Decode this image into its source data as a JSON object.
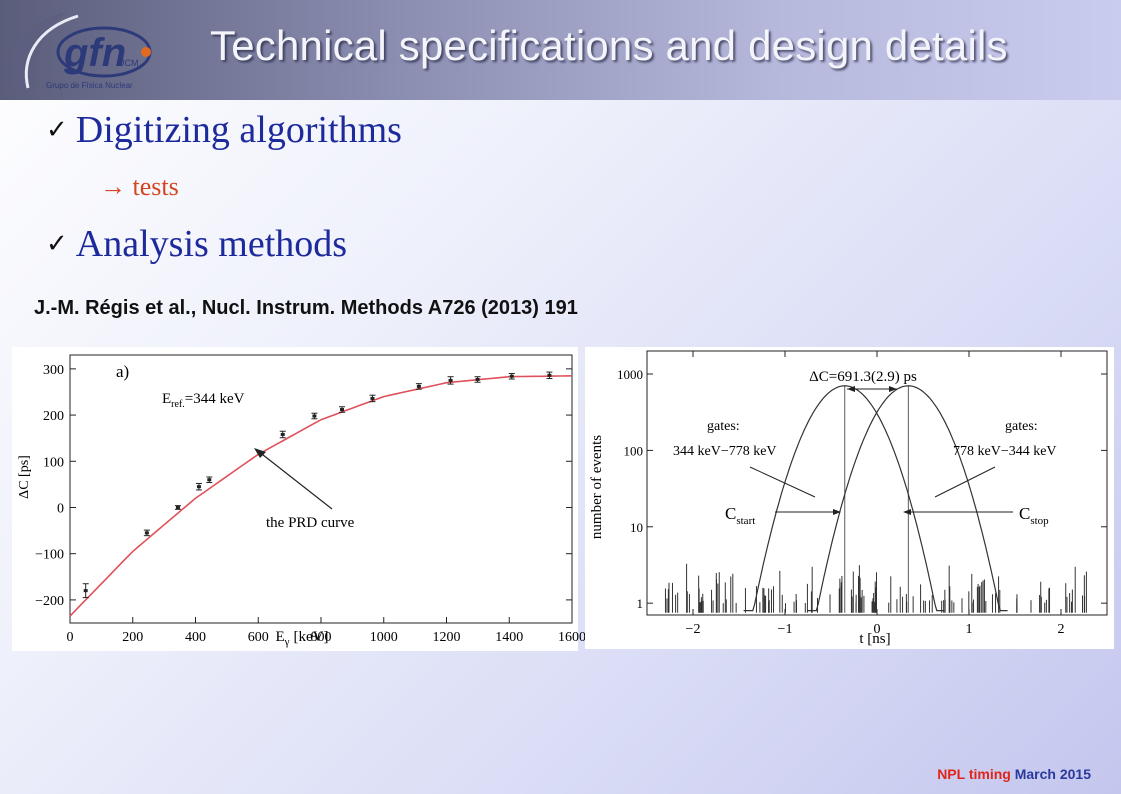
{
  "slide": {
    "title": "Technical specifications and design details",
    "logo_text": "gfn",
    "logo_sub": "UCM",
    "logo_caption": "Grupo de Física Nuclear",
    "bullets": [
      {
        "check": "✓",
        "text": "Digitizing algorithms"
      },
      {
        "check": "✓",
        "text": "Analysis methods"
      }
    ],
    "sub_bullet": "→ tests",
    "reference": "J.-M. Régis et al., Nucl. Instrum. Methods A726 (2013) 191",
    "footer": {
      "part1": "NPL timing",
      "part2": " March 2015"
    }
  },
  "chart_data": [
    {
      "type": "scatter",
      "panel_label": "a)",
      "annotation_eref": "E",
      "annotation_eref_sub": "ref.",
      "annotation_eref_value": "=344 keV",
      "curve_label": "the PRD curve",
      "xlabel": "E",
      "xlabel_sub": "γ",
      "xlabel_unit": "[keV]",
      "ylabel": "ΔC [ps]",
      "xlim": [
        0,
        1600
      ],
      "ylim": [
        -250,
        330
      ],
      "xticks": [
        "0",
        "200",
        "400",
        "600",
        "800",
        "1000",
        "1200",
        "1400",
        "1600"
      ],
      "yticks": [
        "−200",
        "−100",
        "0",
        "100",
        "200",
        "300"
      ],
      "x": [
        50,
        245,
        344,
        411,
        444,
        678,
        779,
        867,
        964,
        1112,
        1213,
        1299,
        1408,
        1528
      ],
      "y": [
        -180,
        -55,
        0,
        45,
        60,
        158,
        198,
        212,
        236,
        262,
        275,
        277,
        284,
        286
      ],
      "err": [
        15,
        6,
        4,
        7,
        6,
        7,
        6,
        6,
        7,
        6,
        8,
        6,
        6,
        7
      ],
      "curve": {
        "x": [
          0,
          200,
          400,
          600,
          800,
          1000,
          1200,
          1400,
          1600
        ],
        "y": [
          -235,
          -95,
          20,
          115,
          190,
          240,
          270,
          283,
          285
        ]
      }
    },
    {
      "type": "line",
      "title": "ΔC=691.3(2.9) ps",
      "xlabel": "t [ns]",
      "ylabel": "number of events",
      "yscale": "log",
      "xlim": [
        -2.5,
        2.5
      ],
      "ylim": [
        0.7,
        2000
      ],
      "xticks": [
        "−2",
        "−1",
        "0",
        "1",
        "2"
      ],
      "yticks": [
        "1",
        "10",
        "100",
        "1000"
      ],
      "series": [
        {
          "name": "C",
          "name_sub": "start",
          "gates_label": "gates:",
          "gates_value": "344 keV−778 keV",
          "center": -0.35,
          "peak": 700
        },
        {
          "name": "C",
          "name_sub": "stop",
          "gates_label": "gates:",
          "gates_value": "778 keV−344 keV",
          "center": 0.34,
          "peak": 700
        }
      ]
    }
  ],
  "colors": {
    "title": "#f4f4fb",
    "bullet": "#1d2a9c",
    "sub_bullet": "#d2451e",
    "curve": "#e0505a",
    "footer_red": "#e0261b",
    "footer_blue": "#2a3a9a"
  }
}
